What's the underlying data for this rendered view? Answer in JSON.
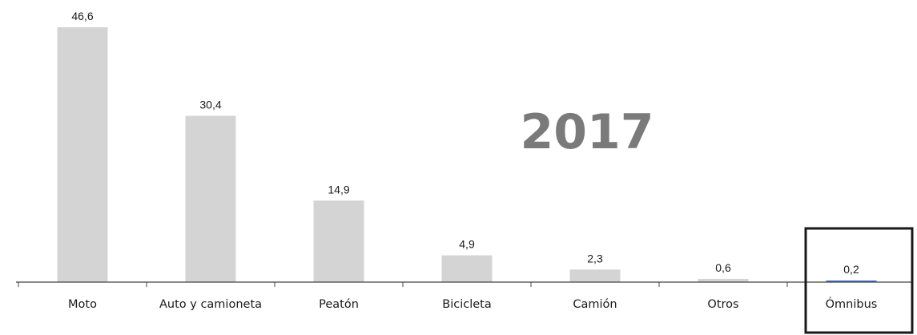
{
  "chart_data": {
    "type": "bar",
    "title": "",
    "annotation": "2017",
    "xlabel": "",
    "ylabel": "",
    "ylim": [
      0,
      50
    ],
    "grid": false,
    "legend": "none",
    "categories": [
      "Moto",
      "Auto y camioneta",
      "Peatón",
      "Bicicleta",
      "Camión",
      "Otros",
      "Ómnibus"
    ],
    "values": [
      46.6,
      30.4,
      14.9,
      4.9,
      2.3,
      0.6,
      0.2
    ],
    "value_labels": [
      "46,6",
      "30,4",
      "14,9",
      "4,9",
      "2,3",
      "0,6",
      "0,2"
    ],
    "highlighted_category": "Ómnibus"
  },
  "colors": {
    "bar": "#d4d4d4",
    "highlight_bar": "#4a6fd0",
    "axis": "#444444",
    "annotation": "#7a7a7a",
    "highlight_box": "#1a1a1a"
  }
}
